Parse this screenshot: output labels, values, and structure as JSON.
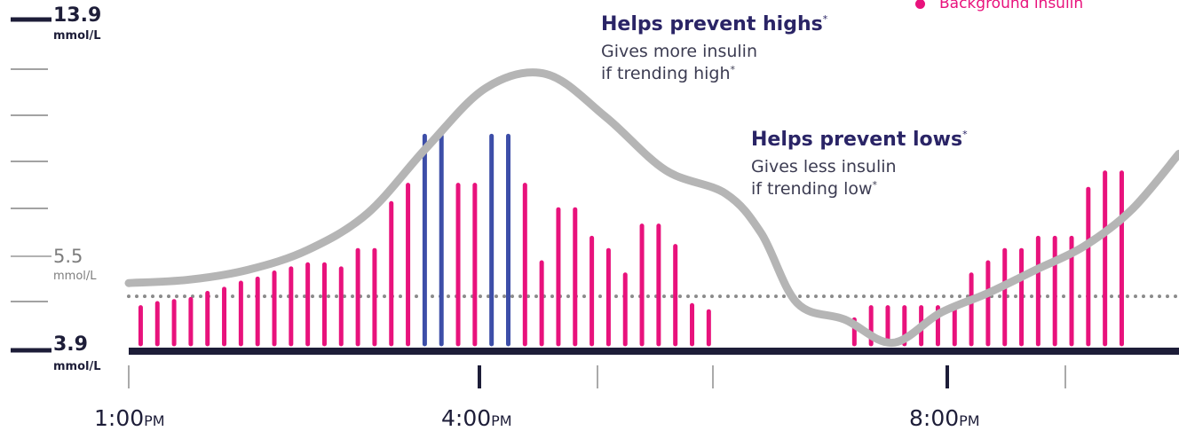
{
  "colors": {
    "background_insulin": "#e8127c",
    "bolus_insulin": "#3d4ea8",
    "glucose_line": "#b5b5b5",
    "baseline": "#1d1d38",
    "target_dots": "#8a8a8a"
  },
  "legend": {
    "label": "Background insulin",
    "marker_color": "#e8127c"
  },
  "y_axis": {
    "top_value": "13.9",
    "top_unit": "mmol/L",
    "target_value": "5.5",
    "target_unit": "mmol/L",
    "bottom_value": "3.9",
    "bottom_unit": "mmol/L"
  },
  "x_axis": {
    "ticks": [
      {
        "time": "1:00",
        "suffix": "PM"
      },
      {
        "time": "4:00",
        "suffix": "PM"
      },
      {
        "time": "8:00",
        "suffix": "PM"
      }
    ]
  },
  "annotations": {
    "highs": {
      "title": "Helps prevent highs",
      "title_mark": "*",
      "line1": "Gives more insulin",
      "line2": "if trending high",
      "line2_mark": "*"
    },
    "lows": {
      "title": "Helps prevent lows",
      "title_mark": "*",
      "line1": "Gives less insulin",
      "line2": "if trending low",
      "line2_mark": "*"
    }
  },
  "chart_data": {
    "type": "bar",
    "title": "",
    "ylabel": "mmol/L",
    "ylim": [
      3.9,
      13.9
    ],
    "target_glucose": 5.5,
    "x_range_hours": [
      13.0,
      21.8
    ],
    "insulin_bars": {
      "unit": "relative",
      "time_hours": [
        13.1,
        13.24,
        13.38,
        13.52,
        13.66,
        13.8,
        13.94,
        14.08,
        14.22,
        14.36,
        14.5,
        14.64,
        14.78,
        14.92,
        15.06,
        15.2,
        15.34,
        15.48,
        15.62,
        15.76,
        15.9,
        16.04,
        16.18,
        16.32,
        16.46,
        16.6,
        16.74,
        16.88,
        17.02,
        17.16,
        17.3,
        17.44,
        17.58,
        17.72,
        17.86,
        18.0,
        18.14,
        18.28,
        18.42,
        19.08,
        19.22,
        19.36,
        19.5,
        19.64,
        19.78,
        19.92,
        20.06,
        20.2,
        20.34,
        20.48,
        20.62,
        20.76,
        20.9,
        21.04,
        21.18,
        21.32,
        21.46,
        21.6,
        21.74
      ],
      "values": [
        0.9,
        1.0,
        1.05,
        1.1,
        1.25,
        1.35,
        1.5,
        1.6,
        1.75,
        1.85,
        1.95,
        1.95,
        1.85,
        2.3,
        2.3,
        3.45,
        3.9,
        5.1,
        5.1,
        3.9,
        3.9,
        5.1,
        5.1,
        3.9,
        2.0,
        3.3,
        3.3,
        2.6,
        2.3,
        1.7,
        2.9,
        2.9,
        2.4,
        0.95,
        0.8,
        0,
        0,
        0,
        0,
        0.6,
        0.9,
        0.9,
        0.9,
        0.9,
        0.9,
        0.9,
        1.7,
        2.0,
        2.3,
        2.3,
        2.6,
        2.6,
        2.6,
        3.8,
        4.2,
        4.2,
        0,
        0,
        0
      ],
      "type": [
        "bg",
        "bg",
        "bg",
        "bg",
        "bg",
        "bg",
        "bg",
        "bg",
        "bg",
        "bg",
        "bg",
        "bg",
        "bg",
        "bg",
        "bg",
        "bg",
        "bg",
        "bolus",
        "bolus",
        "bg",
        "bg",
        "bolus",
        "bolus",
        "bg",
        "bg",
        "bg",
        "bg",
        "bg",
        "bg",
        "bg",
        "bg",
        "bg",
        "bg",
        "bg",
        "bg",
        "bg",
        "bg",
        "bg",
        "bg",
        "bg",
        "bg",
        "bg",
        "bg",
        "bg",
        "bg",
        "bg",
        "bg",
        "bg",
        "bg",
        "bg",
        "bg",
        "bg",
        "bg",
        "bg",
        "bg",
        "bg",
        "bg",
        "bg",
        "bg"
      ]
    },
    "glucose_trend": {
      "time_hours": [
        13.0,
        13.5,
        14.0,
        14.5,
        15.0,
        15.5,
        16.0,
        16.5,
        17.0,
        17.5,
        18.0,
        18.3,
        18.6,
        19.0,
        19.4,
        19.8,
        20.2,
        20.6,
        21.0,
        21.4,
        21.8
      ],
      "mmol_L": [
        5.9,
        6.0,
        6.3,
        6.9,
        8.0,
        10.0,
        11.8,
        12.2,
        10.9,
        9.3,
        8.6,
        7.4,
        5.3,
        4.8,
        4.1,
        5.0,
        5.6,
        6.3,
        7.0,
        8.1,
        9.8
      ]
    }
  }
}
